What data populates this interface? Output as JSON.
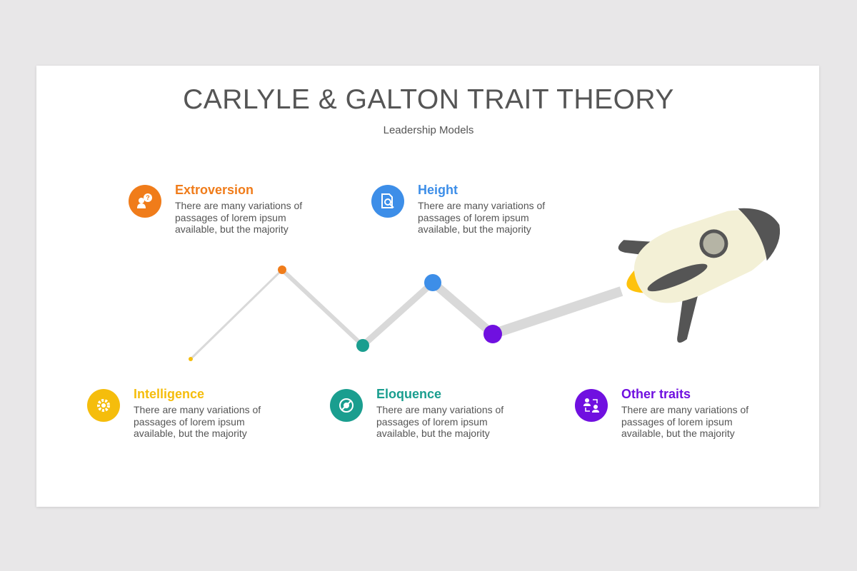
{
  "title": "CARLYLE & GALTON TRAIT THEORY",
  "subtitle": "Leadership Models",
  "items": [
    {
      "heading": "Extroversion",
      "text": "There are many variations of passages of lorem ipsum available, but the majority",
      "color": "#f07c1a",
      "icon": "person-question-icon"
    },
    {
      "heading": "Height",
      "text": "There are many variations of passages of lorem ipsum available, but the majority",
      "color": "#3d8ee8",
      "icon": "document-search-icon"
    },
    {
      "heading": "Intelligence",
      "text": "There are many variations of passages of lorem ipsum available, but the majority",
      "color": "#f5bd0c",
      "icon": "gear-icon"
    },
    {
      "heading": "Eloquence",
      "text": "There are many variations of passages of lorem ipsum available, but the majority",
      "color": "#1a9e8f",
      "icon": "virus-icon"
    },
    {
      "heading": "Other traits",
      "text": "There are many variations of passages of lorem ipsum available, but the majority",
      "color": "#7010e0",
      "icon": "people-exchange-icon"
    }
  ]
}
